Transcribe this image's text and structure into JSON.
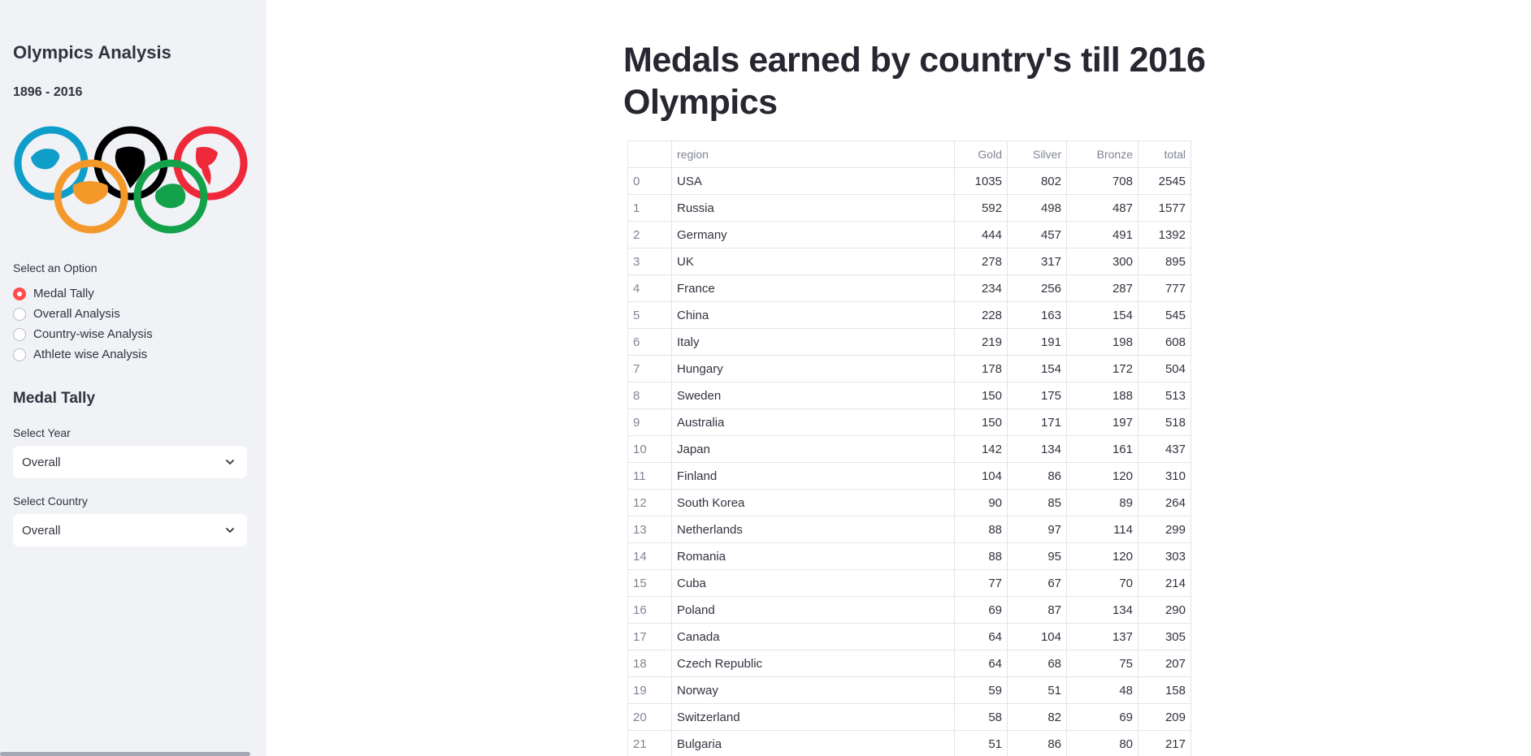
{
  "sidebar": {
    "title": "Olympics Analysis",
    "subtitle": "1896 - 2016",
    "option_label": "Select an Option",
    "options": [
      "Medal Tally",
      "Overall Analysis",
      "Country-wise Analysis",
      "Athlete wise Analysis"
    ],
    "selected_option": "Medal Tally",
    "section_title": "Medal Tally",
    "year_label": "Select Year",
    "year_value": "Overall",
    "country_label": "Select Country",
    "country_value": "Overall"
  },
  "rings_colors": {
    "blue": "#0f9ec9",
    "black": "#000000",
    "red": "#ee2a3a",
    "orange": "#f5982a",
    "green": "#13a14a"
  },
  "main": {
    "title": "Medals earned by country's till 2016 Olympics"
  },
  "table": {
    "columns": [
      "",
      "region",
      "Gold",
      "Silver",
      "Bronze",
      "total"
    ],
    "rows": [
      [
        "0",
        "USA",
        "1035",
        "802",
        "708",
        "2545"
      ],
      [
        "1",
        "Russia",
        "592",
        "498",
        "487",
        "1577"
      ],
      [
        "2",
        "Germany",
        "444",
        "457",
        "491",
        "1392"
      ],
      [
        "3",
        "UK",
        "278",
        "317",
        "300",
        "895"
      ],
      [
        "4",
        "France",
        "234",
        "256",
        "287",
        "777"
      ],
      [
        "5",
        "China",
        "228",
        "163",
        "154",
        "545"
      ],
      [
        "6",
        "Italy",
        "219",
        "191",
        "198",
        "608"
      ],
      [
        "7",
        "Hungary",
        "178",
        "154",
        "172",
        "504"
      ],
      [
        "8",
        "Sweden",
        "150",
        "175",
        "188",
        "513"
      ],
      [
        "9",
        "Australia",
        "150",
        "171",
        "197",
        "518"
      ],
      [
        "10",
        "Japan",
        "142",
        "134",
        "161",
        "437"
      ],
      [
        "11",
        "Finland",
        "104",
        "86",
        "120",
        "310"
      ],
      [
        "12",
        "South Korea",
        "90",
        "85",
        "89",
        "264"
      ],
      [
        "13",
        "Netherlands",
        "88",
        "97",
        "114",
        "299"
      ],
      [
        "14",
        "Romania",
        "88",
        "95",
        "120",
        "303"
      ],
      [
        "15",
        "Cuba",
        "77",
        "67",
        "70",
        "214"
      ],
      [
        "16",
        "Poland",
        "69",
        "87",
        "134",
        "290"
      ],
      [
        "17",
        "Canada",
        "64",
        "104",
        "137",
        "305"
      ],
      [
        "18",
        "Czech Republic",
        "64",
        "68",
        "75",
        "207"
      ],
      [
        "19",
        "Norway",
        "59",
        "51",
        "48",
        "158"
      ],
      [
        "20",
        "Switzerland",
        "58",
        "82",
        "69",
        "209"
      ],
      [
        "21",
        "Bulgaria",
        "51",
        "86",
        "80",
        "217"
      ]
    ]
  }
}
